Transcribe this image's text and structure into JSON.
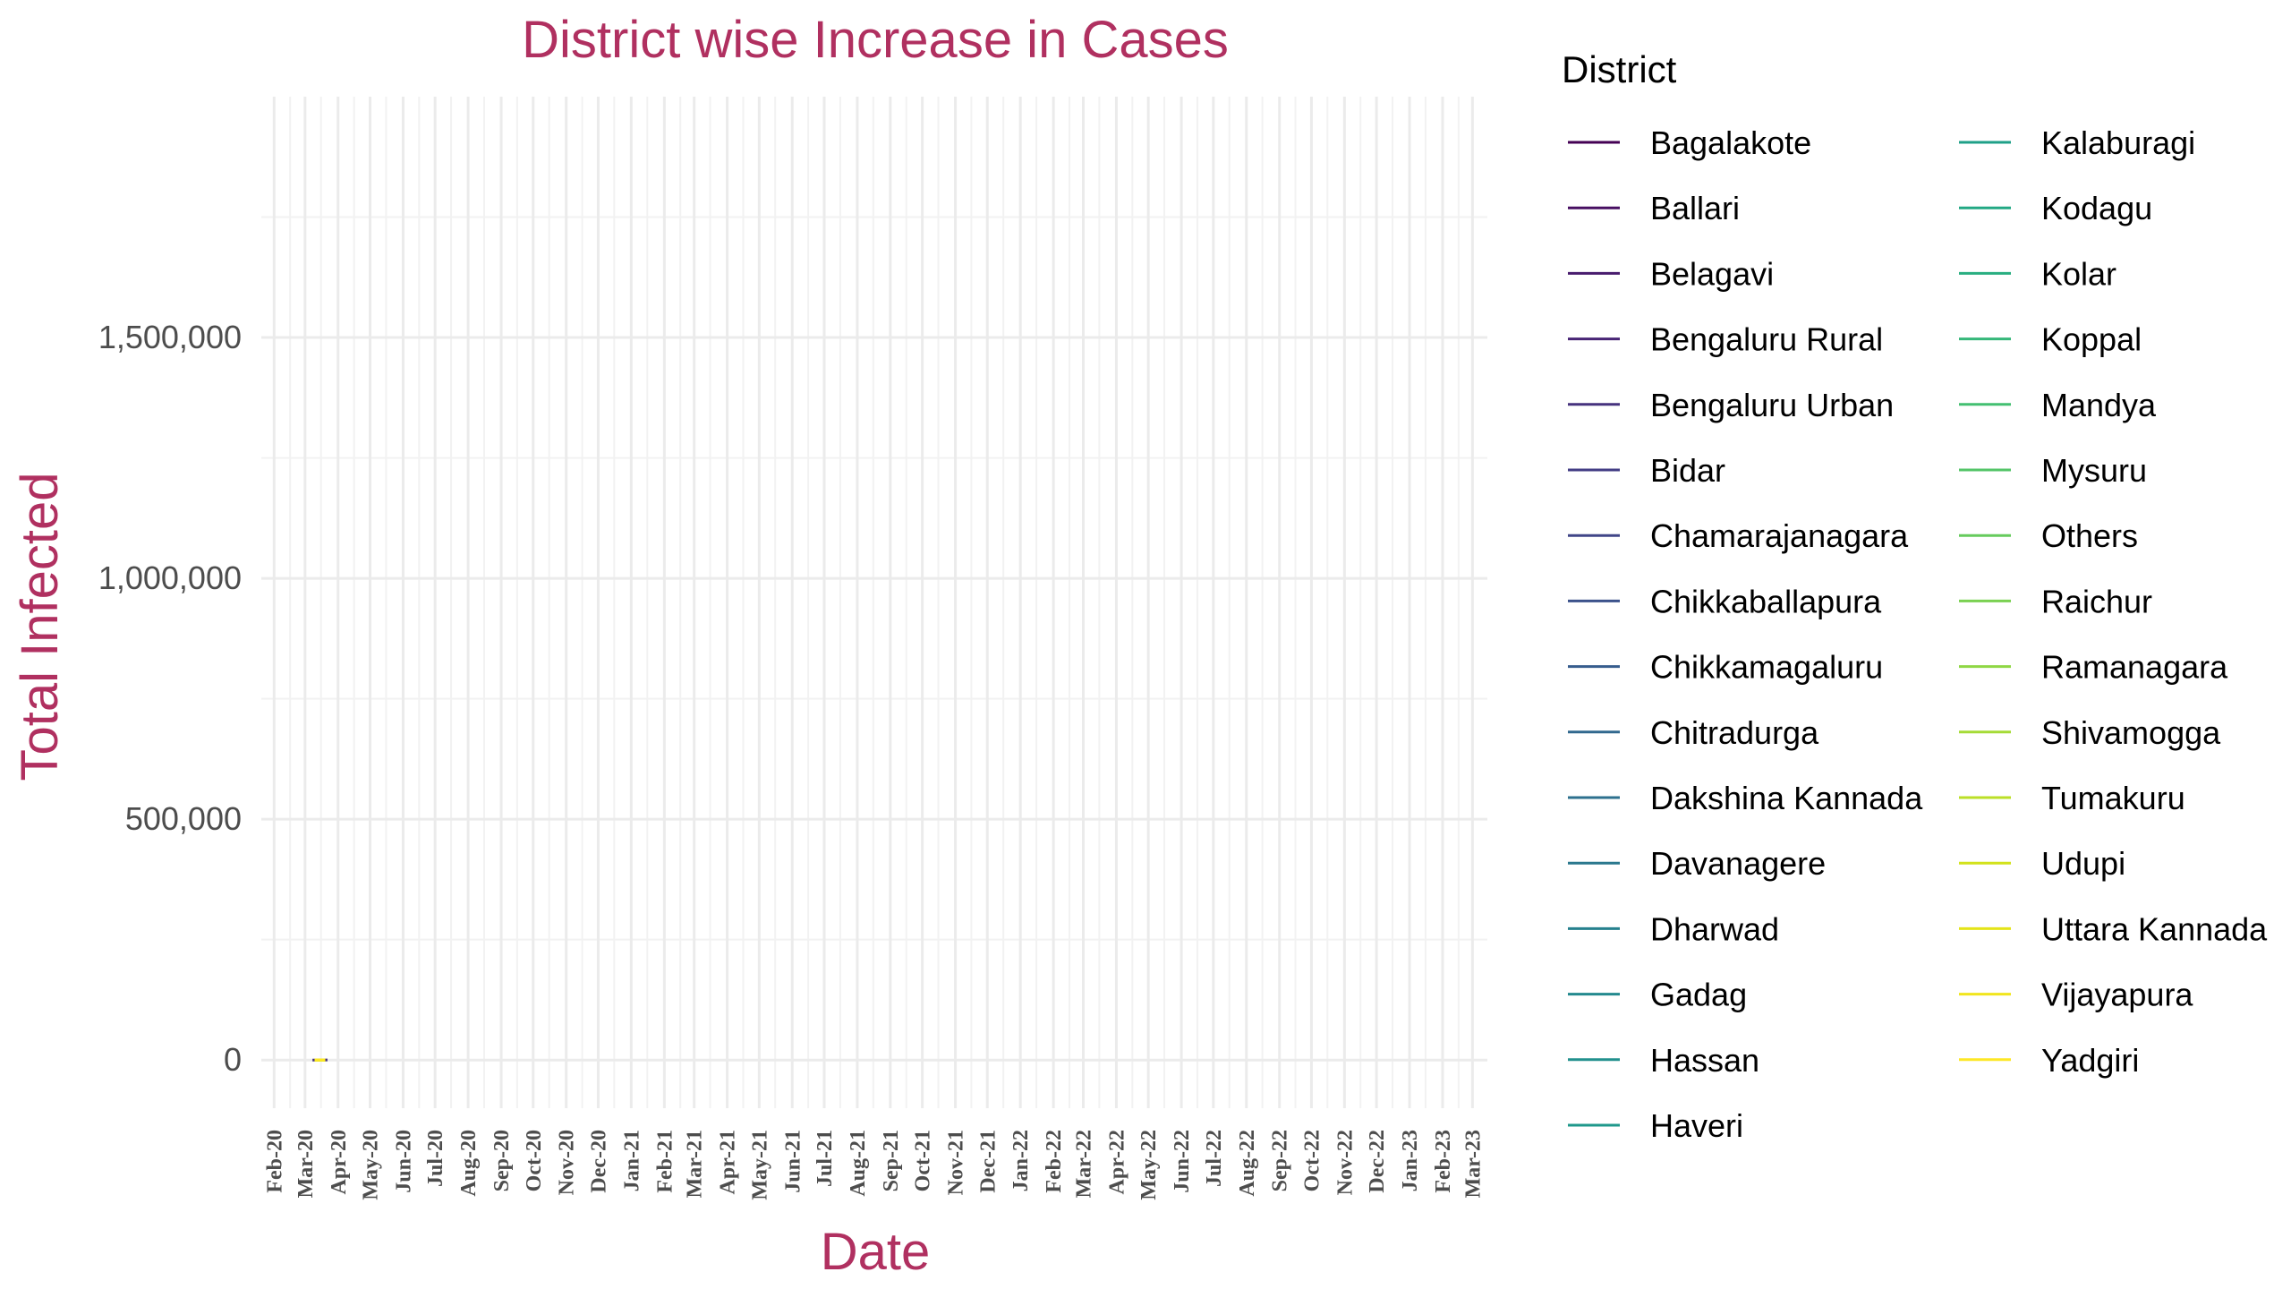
{
  "chart_data": {
    "type": "line",
    "title": "District wise Increase in Cases",
    "xlabel": "Date",
    "ylabel": "Total Infected",
    "ylim": [
      -100000,
      2000000
    ],
    "yticks": [
      0,
      500000,
      1000000,
      1500000
    ],
    "ytick_labels": [
      "0",
      "500,000",
      "1,000,000",
      "1,500,000"
    ],
    "x_range": [
      "2020-01-20",
      "2023-03-15"
    ],
    "x_ticks": [
      "2020-02-01",
      "2020-03-01",
      "2020-04-01",
      "2020-05-01",
      "2020-06-01",
      "2020-07-01",
      "2020-08-01",
      "2020-09-01",
      "2020-10-01",
      "2020-11-01",
      "2020-12-01",
      "2021-01-01",
      "2021-02-01",
      "2021-03-01",
      "2021-04-01",
      "2021-05-01",
      "2021-06-01",
      "2021-07-01",
      "2021-08-01",
      "2021-09-01",
      "2021-10-01",
      "2021-11-01",
      "2021-12-01",
      "2022-01-01",
      "2022-02-01",
      "2022-03-01",
      "2022-04-01",
      "2022-05-01",
      "2022-06-01",
      "2022-07-01",
      "2022-08-01",
      "2022-09-01",
      "2022-10-01",
      "2022-11-01",
      "2022-12-01",
      "2023-01-01",
      "2023-02-01",
      "2023-03-01"
    ],
    "x_tick_labels": [
      "Feb-20",
      "Mar-20",
      "Apr-20",
      "May-20",
      "Jun-20",
      "Jul-20",
      "Aug-20",
      "Sep-20",
      "Oct-20",
      "Nov-20",
      "Dec-20",
      "Jan-21",
      "Feb-21",
      "Mar-21",
      "Apr-21",
      "May-21",
      "Jun-21",
      "Jul-21",
      "Aug-21",
      "Sep-21",
      "Oct-21",
      "Nov-21",
      "Dec-21",
      "Jan-22",
      "Feb-22",
      "Mar-22",
      "Apr-22",
      "May-22",
      "Jun-22",
      "Jul-22",
      "Aug-22",
      "Sep-22",
      "Oct-22",
      "Nov-22",
      "Dec-22",
      "Jan-23",
      "Feb-23",
      "Mar-23"
    ],
    "grid": true,
    "legend": {
      "title": "District",
      "position": "right",
      "columns": 2
    },
    "series": [
      {
        "name": "Bagalakote",
        "color": "#440154",
        "x": [
          "2020-03-10",
          "2020-03-20"
        ],
        "y": [
          0,
          5
        ]
      },
      {
        "name": "Ballari",
        "color": "#470E61",
        "x": [
          "2020-03-10",
          "2020-03-20"
        ],
        "y": [
          0,
          5
        ]
      },
      {
        "name": "Belagavi",
        "color": "#481B6D",
        "x": [
          "2020-03-10",
          "2020-03-20"
        ],
        "y": [
          0,
          5
        ]
      },
      {
        "name": "Bengaluru Rural",
        "color": "#482475",
        "x": [
          "2020-03-10",
          "2020-03-20"
        ],
        "y": [
          0,
          5
        ]
      },
      {
        "name": "Bengaluru Urban",
        "color": "#46327E",
        "x": [
          "2020-03-08",
          "2020-03-22"
        ],
        "y": [
          0,
          100
        ]
      },
      {
        "name": "Bidar",
        "color": "#433E85",
        "x": [
          "2020-03-10",
          "2020-03-20"
        ],
        "y": [
          0,
          5
        ]
      },
      {
        "name": "Chamarajanagara",
        "color": "#404688",
        "x": [
          "2020-03-10",
          "2020-03-20"
        ],
        "y": [
          0,
          5
        ]
      },
      {
        "name": "Chikkaballapura",
        "color": "#3B528B",
        "x": [
          "2020-03-10",
          "2020-03-20"
        ],
        "y": [
          0,
          10
        ]
      },
      {
        "name": "Chikkamagaluru",
        "color": "#365C8D",
        "x": [
          "2020-03-10",
          "2020-03-20"
        ],
        "y": [
          0,
          5
        ]
      },
      {
        "name": "Chitradurga",
        "color": "#31688E",
        "x": [
          "2020-03-10",
          "2020-03-20"
        ],
        "y": [
          0,
          5
        ]
      },
      {
        "name": "Dakshina Kannada",
        "color": "#2D708E",
        "x": [
          "2020-03-10",
          "2020-03-20"
        ],
        "y": [
          0,
          10
        ]
      },
      {
        "name": "Davanagere",
        "color": "#2A788E",
        "x": [
          "2020-03-10",
          "2020-03-20"
        ],
        "y": [
          0,
          5
        ]
      },
      {
        "name": "Dharwad",
        "color": "#26818E",
        "x": [
          "2020-03-10",
          "2020-03-20"
        ],
        "y": [
          0,
          5
        ]
      },
      {
        "name": "Gadag",
        "color": "#23898E",
        "x": [
          "2020-03-10",
          "2020-03-20"
        ],
        "y": [
          0,
          5
        ]
      },
      {
        "name": "Hassan",
        "color": "#21908D",
        "x": [
          "2020-03-10",
          "2020-03-20"
        ],
        "y": [
          0,
          5
        ]
      },
      {
        "name": "Haveri",
        "color": "#1F988B",
        "x": [
          "2020-03-10",
          "2020-03-20"
        ],
        "y": [
          0,
          5
        ]
      },
      {
        "name": "Kalaburagi",
        "color": "#1FA088",
        "x": [
          "2020-03-10",
          "2020-03-20"
        ],
        "y": [
          0,
          10
        ]
      },
      {
        "name": "Kodagu",
        "color": "#22A884",
        "x": [
          "2020-03-10",
          "2020-03-20"
        ],
        "y": [
          0,
          5
        ]
      },
      {
        "name": "Kolar",
        "color": "#28AE80",
        "x": [
          "2020-03-10",
          "2020-03-20"
        ],
        "y": [
          0,
          5
        ]
      },
      {
        "name": "Koppal",
        "color": "#35B779",
        "x": [
          "2020-03-10",
          "2020-03-20"
        ],
        "y": [
          0,
          5
        ]
      },
      {
        "name": "Mandya",
        "color": "#43BF71",
        "x": [
          "2020-03-10",
          "2020-03-20"
        ],
        "y": [
          0,
          5
        ]
      },
      {
        "name": "Mysuru",
        "color": "#54C568",
        "x": [
          "2020-03-10",
          "2020-03-20"
        ],
        "y": [
          0,
          10
        ]
      },
      {
        "name": "Others",
        "color": "#66CB5D",
        "x": [
          "2020-03-10",
          "2020-03-20"
        ],
        "y": [
          0,
          5
        ]
      },
      {
        "name": "Raichur",
        "color": "#7AD151",
        "x": [
          "2020-03-10",
          "2020-03-20"
        ],
        "y": [
          0,
          5
        ]
      },
      {
        "name": "Ramanagara",
        "color": "#8FD744",
        "x": [
          "2020-03-10",
          "2020-03-20"
        ],
        "y": [
          0,
          5
        ]
      },
      {
        "name": "Shivamogga",
        "color": "#A5DB36",
        "x": [
          "2020-03-10",
          "2020-03-20"
        ],
        "y": [
          0,
          5
        ]
      },
      {
        "name": "Tumakuru",
        "color": "#BBDF27",
        "x": [
          "2020-03-10",
          "2020-03-20"
        ],
        "y": [
          0,
          5
        ]
      },
      {
        "name": "Udupi",
        "color": "#D2E21B",
        "x": [
          "2020-03-10",
          "2020-03-20"
        ],
        "y": [
          0,
          5
        ]
      },
      {
        "name": "Uttara Kannada",
        "color": "#E4E419",
        "x": [
          "2020-03-10",
          "2020-03-20"
        ],
        "y": [
          0,
          10
        ]
      },
      {
        "name": "Vijayapura",
        "color": "#F1E51D",
        "x": [
          "2020-03-10",
          "2020-03-20"
        ],
        "y": [
          0,
          5
        ]
      },
      {
        "name": "Yadgiri",
        "color": "#FDE725",
        "x": [
          "2020-03-10",
          "2020-03-20"
        ],
        "y": [
          0,
          5
        ]
      }
    ]
  }
}
